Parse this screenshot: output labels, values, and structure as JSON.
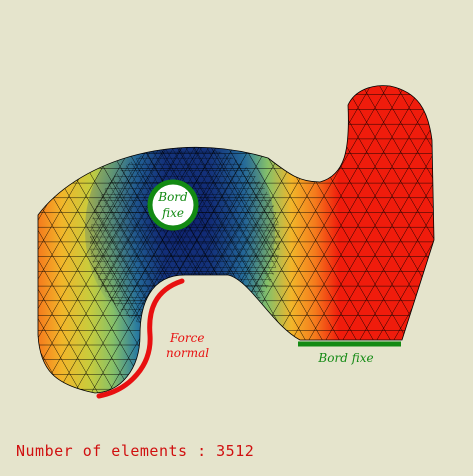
{
  "labels": {
    "hole_label_line1": "Bord",
    "hole_label_line2": "fixe",
    "force_line1": "Force",
    "force_line2": "normal",
    "bottom_edge_label": "Bord fixe"
  },
  "footer": {
    "prefix": "Number of elements : ",
    "count": "3512"
  },
  "colors": {
    "background": "#e5e4cc",
    "fixed_boundary": "#138a13",
    "force_boundary": "#e81010",
    "mesh_line": "#000000",
    "footer_text": "#d01010"
  },
  "colormap": [
    "#0c1a6a",
    "#1b4a8c",
    "#2a7ca0",
    "#48a487",
    "#86c068",
    "#c8cc3c",
    "#f2b62a",
    "#f57a1c",
    "#f01c0c"
  ]
}
